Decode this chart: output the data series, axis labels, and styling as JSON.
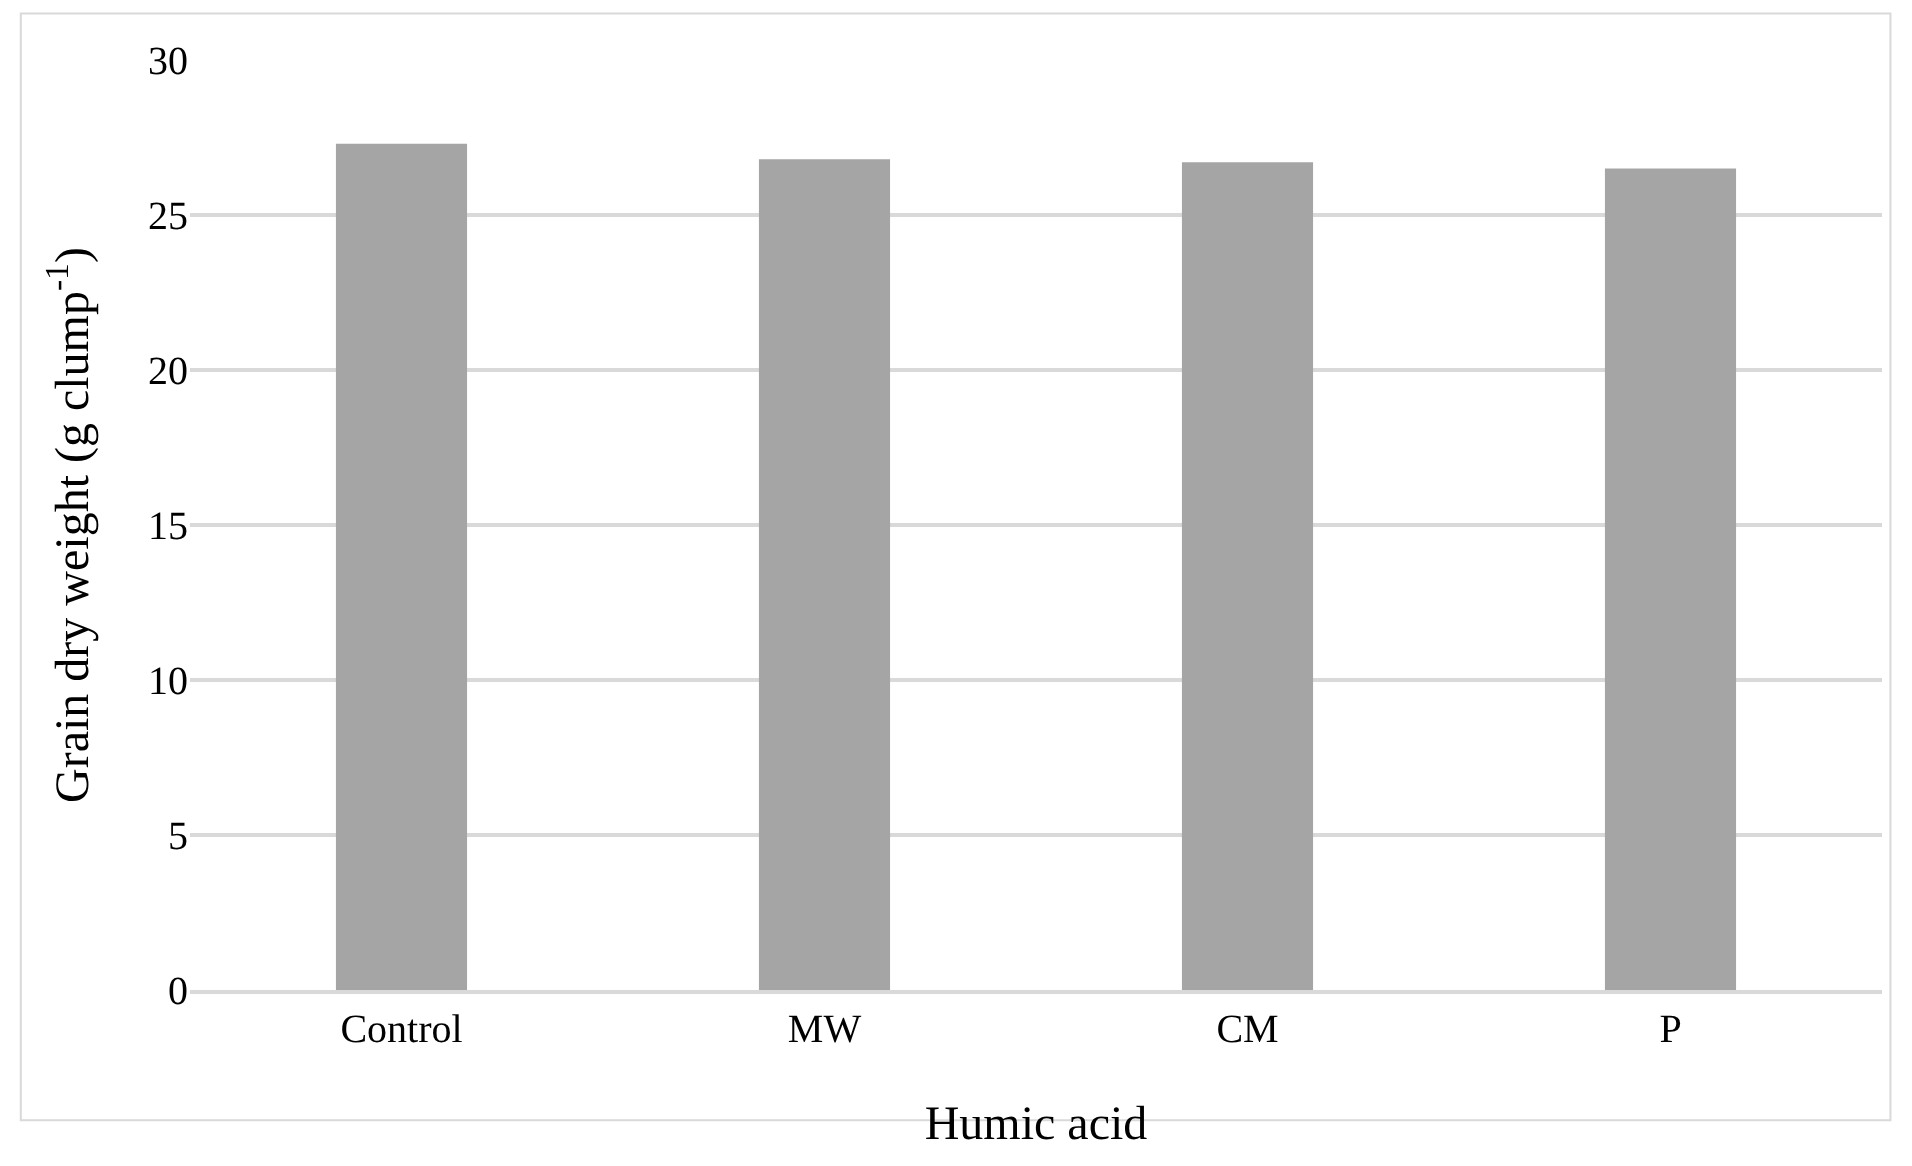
{
  "chart_data": {
    "type": "bar",
    "xlabel": "Humic acid",
    "ylabel": "Grain dry weight (g clump$^{-1}$)",
    "categories": [
      "Control",
      "MW",
      "CM",
      "P"
    ],
    "values": [
      27.3,
      26.8,
      26.7,
      26.5
    ],
    "color": "#a5a5a5",
    "ylim": [
      0,
      30
    ],
    "yticks": [
      0,
      5,
      10,
      15,
      20,
      25,
      30
    ],
    "grid": "y"
  }
}
